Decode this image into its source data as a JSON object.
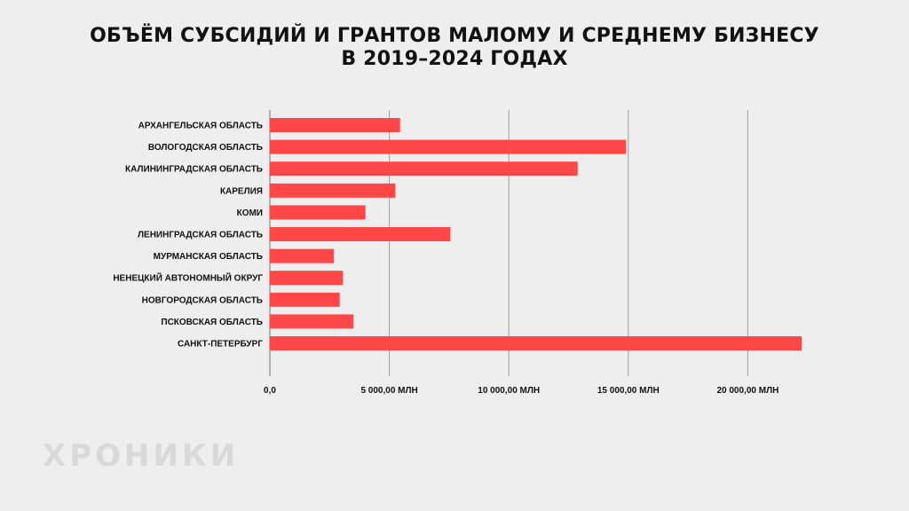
{
  "title_line1": "ОБЪЁМ СУБСИДИЙ И ГРАНТОВ МАЛОМУ И СРЕДНЕМУ БИЗНЕСУ",
  "title_line2": "В 2019–2024 ГОДАХ",
  "watermark": "ХРОНИКИ",
  "colors": {
    "bar": "#ff4747",
    "grid": "#9e9e9e",
    "background": "#eeeeee",
    "text": "#111111"
  },
  "chart_data": {
    "type": "bar",
    "orientation": "horizontal",
    "title": "ОБЪЁМ СУБСИДИЙ И ГРАНТОВ МАЛОМУ И СРЕДНЕМУ БИЗНЕСУ В 2019–2024 ГОДАХ",
    "categories": [
      "АРХАНГЕЛЬСКАЯ ОБЛАСТЬ",
      "ВОЛОГОДСКАЯ ОБЛАСТЬ",
      "КАЛИНИНГРАДСКАЯ ОБЛАСТЬ",
      "КАРЕЛИЯ",
      "КОМИ",
      "ЛЕНИНГРАДСКАЯ ОБЛАСТЬ",
      "МУРМАНСКАЯ ОБЛАСТЬ",
      "НЕНЕЦКИЙ АВТОНОМНЫЙ ОКРУГ",
      "НОВГОРОДСКАЯ ОБЛАСТЬ",
      "ПСКОВСКАЯ ОБЛАСТЬ",
      "САНКТ-ПЕТЕРБУРГ"
    ],
    "values": [
      5450,
      14900,
      12880,
      5250,
      4000,
      7550,
      2680,
      3060,
      2920,
      3500,
      22250
    ],
    "xlim": [
      0,
      22500
    ],
    "ticks": [
      0,
      5000,
      10000,
      15000,
      20000
    ],
    "tick_labels": [
      "0,0",
      "5 000,00 МЛН",
      "10 000,00 МЛН",
      "15 000,00 МЛН",
      "20 000,00 МЛН"
    ],
    "grid": true,
    "legend": "none"
  }
}
